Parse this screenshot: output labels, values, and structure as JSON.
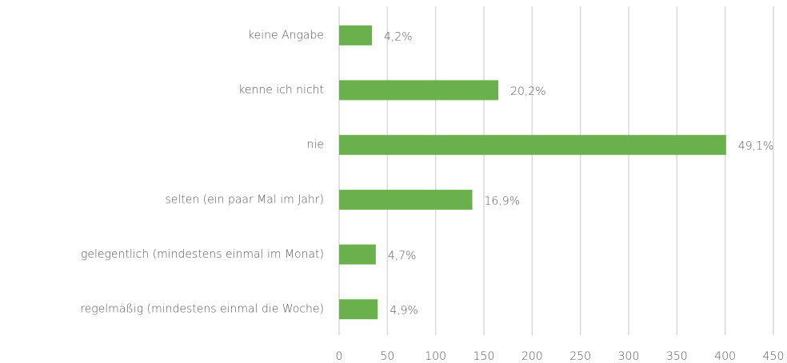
{
  "chart_data": {
    "type": "bar",
    "orientation": "horizontal",
    "categories": [
      "keine Angabe",
      "kenne ich nicht",
      "nie",
      "selten (ein paar Mal im Jahr)",
      "gelegentlich (mindestens einmal im Monat)",
      "regelmäßig (mindestens einmal die Woche)"
    ],
    "values": [
      34,
      165,
      401,
      138,
      38,
      40
    ],
    "value_labels": [
      "4,2%",
      "20,2%",
      "49,1%",
      "16,9%",
      "4,7%",
      "4,9%"
    ],
    "color": "#6ab04c",
    "xlim": [
      0,
      450
    ],
    "xticks": [
      0,
      50,
      100,
      150,
      200,
      250,
      300,
      350,
      400,
      450
    ],
    "grid": true
  }
}
